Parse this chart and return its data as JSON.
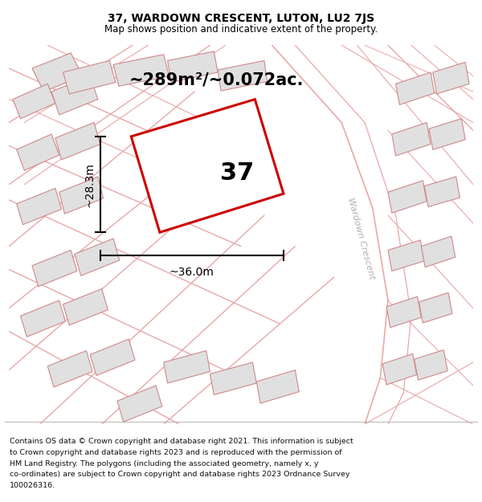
{
  "title": "37, WARDOWN CRESCENT, LUTON, LU2 7JS",
  "subtitle": "Map shows position and indicative extent of the property.",
  "footnote_line1": "Contains OS data © Crown copyright and database right 2021. This information is subject",
  "footnote_line2": "to Crown copyright and database rights 2023 and is reproduced with the permission of",
  "footnote_line3": "HM Land Registry. The polygons (including the associated geometry, namely x, y",
  "footnote_line4": "co-ordinates) are subject to Crown copyright and database rights 2023 Ordnance Survey",
  "footnote_line5": "100026316.",
  "area_label": "~289m²/~0.072ac.",
  "width_label": "~36.0m",
  "height_label": "~28.3m",
  "number_label": "37",
  "map_bg": "#f2f2f2",
  "road_color": "#e8a8a8",
  "building_fill": "#e0e0e0",
  "building_edge": "#d08888",
  "highlight_color": "#cc0000",
  "road_label": "Wardown Crescent",
  "figsize": [
    6.0,
    6.25
  ],
  "dpi": 100,
  "title_fontsize": 10,
  "subtitle_fontsize": 8.5,
  "footnote_fontsize": 6.8
}
